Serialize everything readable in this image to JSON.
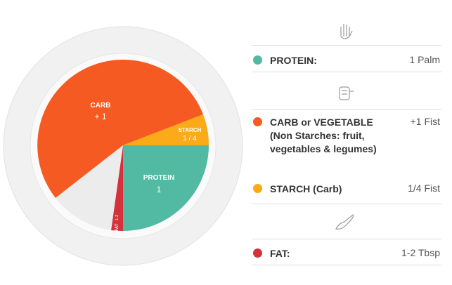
{
  "plate": {
    "carb": {
      "name": "CARB",
      "amount": "+ 1"
    },
    "starch": {
      "name": "STARCH",
      "amount": "1 / 4"
    },
    "protein": {
      "name": "PROTEIN",
      "amount": "1"
    },
    "fat": {
      "name": "FAT",
      "amount": "1-2"
    }
  },
  "legend": [
    {
      "label": "PROTEIN:",
      "amount": "1 Palm",
      "color": "#52b9a3"
    },
    {
      "label": "CARB or VEGETABLE (Non Starches: fruit, vegetables & legumes)",
      "amount": "+1 Fist",
      "color": "#f55a22"
    },
    {
      "label": "STARCH (Carb)",
      "amount": "1/4 Fist",
      "color": "#fbab17"
    },
    {
      "label": "FAT:",
      "amount": "1-2 Tbsp",
      "color": "#d3323a"
    }
  ]
}
